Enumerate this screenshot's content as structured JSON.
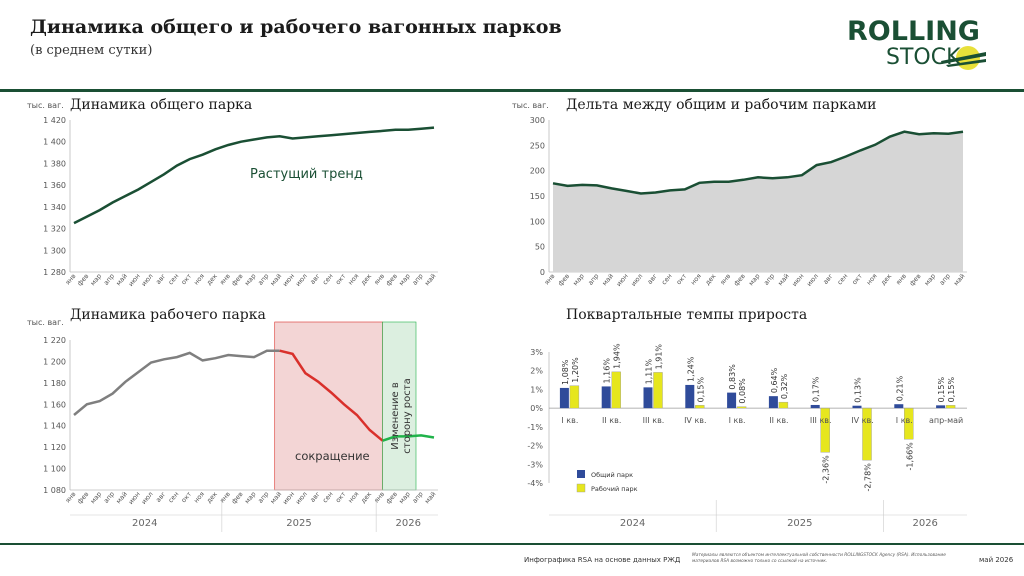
{
  "header": {
    "title": "Динамика общего и рабочего вагонных парков",
    "subtitle": "(в среднем сутки)",
    "logo_line1": "ROLLING",
    "logo_line2": "STOCK"
  },
  "footer": {
    "source": "Инфографика RSA на основе данных РЖД",
    "note": "Материалы являются объектом интеллектуальной собственности ROLLINGSTOCK Agency (RSA). Использование материалов RSA возможно только со ссылкой на источник.",
    "date": "май 2026"
  },
  "colors": {
    "dark_green": "#1a4f34",
    "gray_line": "#7f7f7f",
    "red": "#d9302b",
    "green": "#20b34a",
    "blue": "#2f4b9a",
    "yellow": "#e6e61e",
    "area_fill": "#d6d6d6"
  },
  "chart_data": [
    {
      "type": "line",
      "title": "Динамика общего парка",
      "unit": "тыс. ваг.",
      "annotation": "Растущий тренд",
      "x": [
        "янв",
        "фев",
        "мар",
        "апр",
        "май",
        "июн",
        "июл",
        "авг",
        "сен",
        "окт",
        "ноя",
        "дек",
        "янв",
        "фев",
        "мар",
        "апр",
        "май",
        "июн",
        "июл",
        "авг",
        "сен",
        "окт",
        "ноя",
        "дек",
        "янв",
        "фев",
        "мар",
        "апр",
        "май"
      ],
      "values": [
        1325,
        1331,
        1337,
        1344,
        1350,
        1356,
        1363,
        1370,
        1378,
        1384,
        1388,
        1393,
        1397,
        1400,
        1402,
        1404,
        1405,
        1403,
        1404,
        1405,
        1406,
        1407,
        1408,
        1409,
        1410,
        1411,
        1411,
        1412,
        1413
      ],
      "ylim": [
        1280,
        1420
      ],
      "yticks": [
        "1 280",
        "1 300",
        "1 320",
        "1 340",
        "1 360",
        "1 380",
        "1 400",
        "1 420"
      ]
    },
    {
      "type": "area",
      "title": "Дельта между общим и рабочим парками",
      "unit": "тыс. ваг.",
      "x": [
        "янв",
        "фев",
        "мар",
        "апр",
        "май",
        "июн",
        "июл",
        "авг",
        "сен",
        "окт",
        "ноя",
        "дек",
        "янв",
        "фев",
        "мар",
        "апр",
        "май",
        "июн",
        "июл",
        "авг",
        "сен",
        "окт",
        "ноя",
        "дек",
        "янв",
        "фев",
        "мар",
        "апр",
        "май"
      ],
      "values": [
        175,
        170,
        172,
        171,
        165,
        160,
        155,
        157,
        161,
        163,
        176,
        178,
        178,
        182,
        187,
        185,
        187,
        191,
        211,
        217,
        228,
        240,
        251,
        267,
        277,
        272,
        274,
        273,
        277
      ],
      "ylim": [
        0,
        300
      ],
      "yticks": [
        "0",
        "50",
        "100",
        "150",
        "200",
        "250",
        "300"
      ]
    },
    {
      "type": "line",
      "title": "Динамика рабочего парка",
      "unit": "тыс. ваг.",
      "annotations": [
        "сокращение",
        "Изменение в сторону роста"
      ],
      "years": [
        "2024",
        "2025",
        "2026"
      ],
      "x": [
        "янв",
        "фев",
        "мар",
        "апр",
        "май",
        "июн",
        "июл",
        "авг",
        "сен",
        "окт",
        "ноя",
        "дек",
        "янв",
        "фев",
        "мар",
        "апр",
        "май",
        "июн",
        "июл",
        "авг",
        "сен",
        "окт",
        "ноя",
        "дек",
        "янв",
        "фев",
        "мар",
        "апр",
        "май"
      ],
      "values": [
        1150,
        1160,
        1163,
        1170,
        1181,
        1190,
        1199,
        1202,
        1204,
        1208,
        1201,
        1203,
        1206,
        1205,
        1204,
        1210,
        1210,
        1207,
        1189,
        1181,
        1171,
        1160,
        1150,
        1136,
        1126,
        1130,
        1130,
        1131,
        1129
      ],
      "ylim": [
        1080,
        1220
      ],
      "yticks": [
        "1 080",
        "1 100",
        "1 120",
        "1 140",
        "1 160",
        "1 180",
        "1 200",
        "1 220"
      ]
    },
    {
      "type": "bar",
      "title": "Поквартальные темпы прироста",
      "years": [
        "2024",
        "2025",
        "2026"
      ],
      "categories": [
        "I кв.",
        "II кв.",
        "III кв.",
        "IV кв.",
        "I кв.",
        "II кв.",
        "III кв.",
        "IV кв.",
        "I кв.",
        "апр-май"
      ],
      "series": [
        {
          "name": "Общий парк",
          "values": [
            1.08,
            1.16,
            1.11,
            1.24,
            0.83,
            0.64,
            0.17,
            0.13,
            0.21,
            0.15
          ],
          "labels": [
            "1,08%",
            "1,16%",
            "1,11%",
            "1,24%",
            "0,83%",
            "0,64%",
            "0,17%",
            "0,13%",
            "0,21%",
            "0,15%"
          ]
        },
        {
          "name": "Рабочий парк",
          "values": [
            1.2,
            1.94,
            1.91,
            0.15,
            0.08,
            0.32,
            -2.36,
            -2.78,
            -1.66,
            0.15
          ],
          "labels": [
            "1,20%",
            "1,94%",
            "1,91%",
            "0,15%",
            "0,08%",
            "0,32%",
            "-2,36%",
            "-2,78%",
            "-1,66%",
            "0,15%"
          ]
        }
      ],
      "ylim": [
        -4,
        3
      ],
      "yticks": [
        "-4%",
        "-3%",
        "-2%",
        "-1%",
        "0%",
        "1%",
        "2%",
        "3%"
      ]
    }
  ]
}
